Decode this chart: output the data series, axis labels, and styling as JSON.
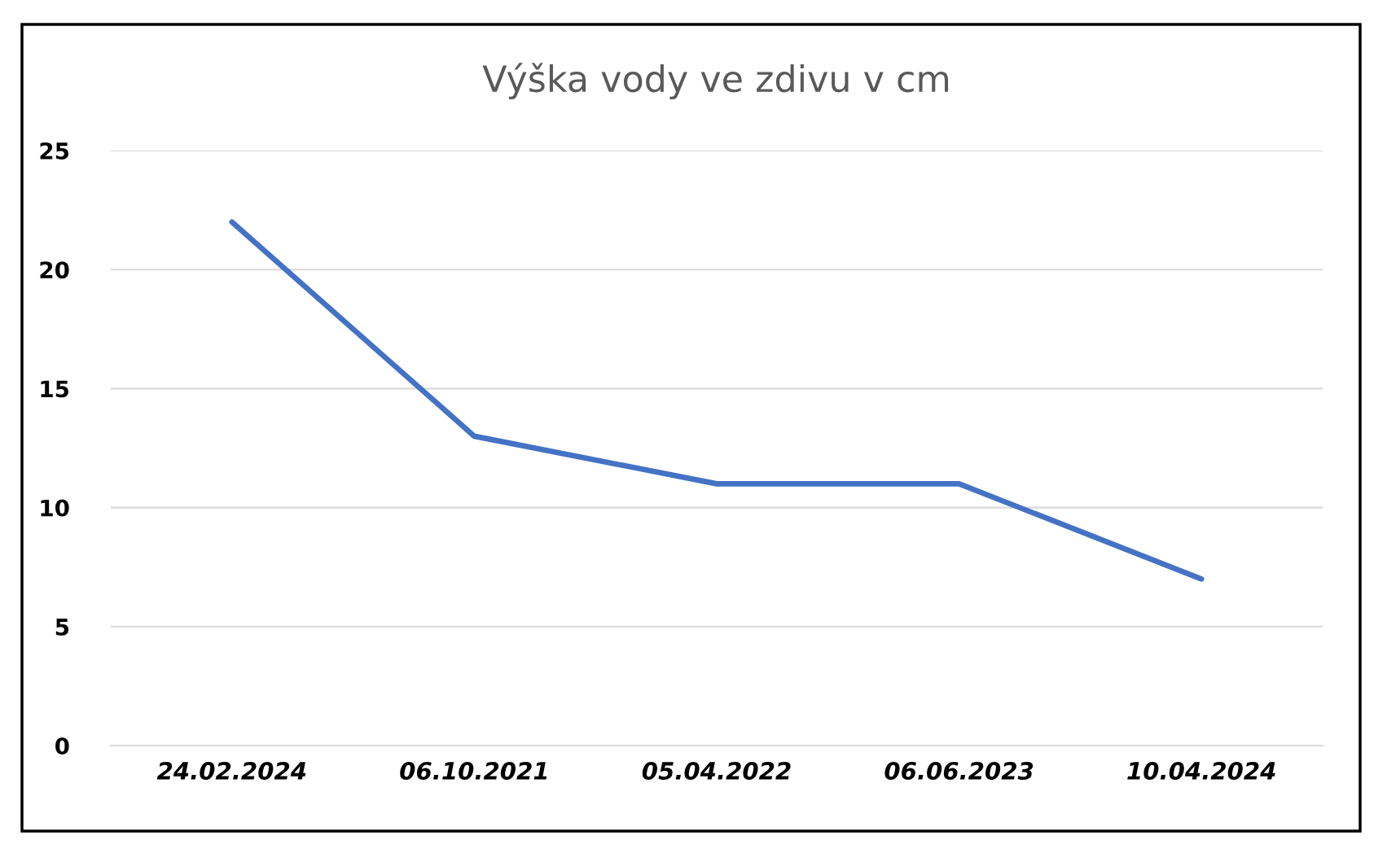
{
  "chart_data": {
    "type": "line",
    "title": "Výška vody ve zdivu v cm",
    "categories": [
      "24.02.2024",
      "06.10.2021",
      "05.04.2022",
      "06.06.2023",
      "10.04.2024"
    ],
    "series": [
      {
        "color": "#4472c4",
        "values": [
          22,
          13,
          11,
          11,
          7
        ]
      }
    ],
    "ylim": [
      0,
      25
    ],
    "yticks": [
      0,
      5,
      10,
      15,
      20,
      25
    ],
    "grid": "y",
    "legend": false,
    "marker": "none",
    "line_style": "solid"
  }
}
